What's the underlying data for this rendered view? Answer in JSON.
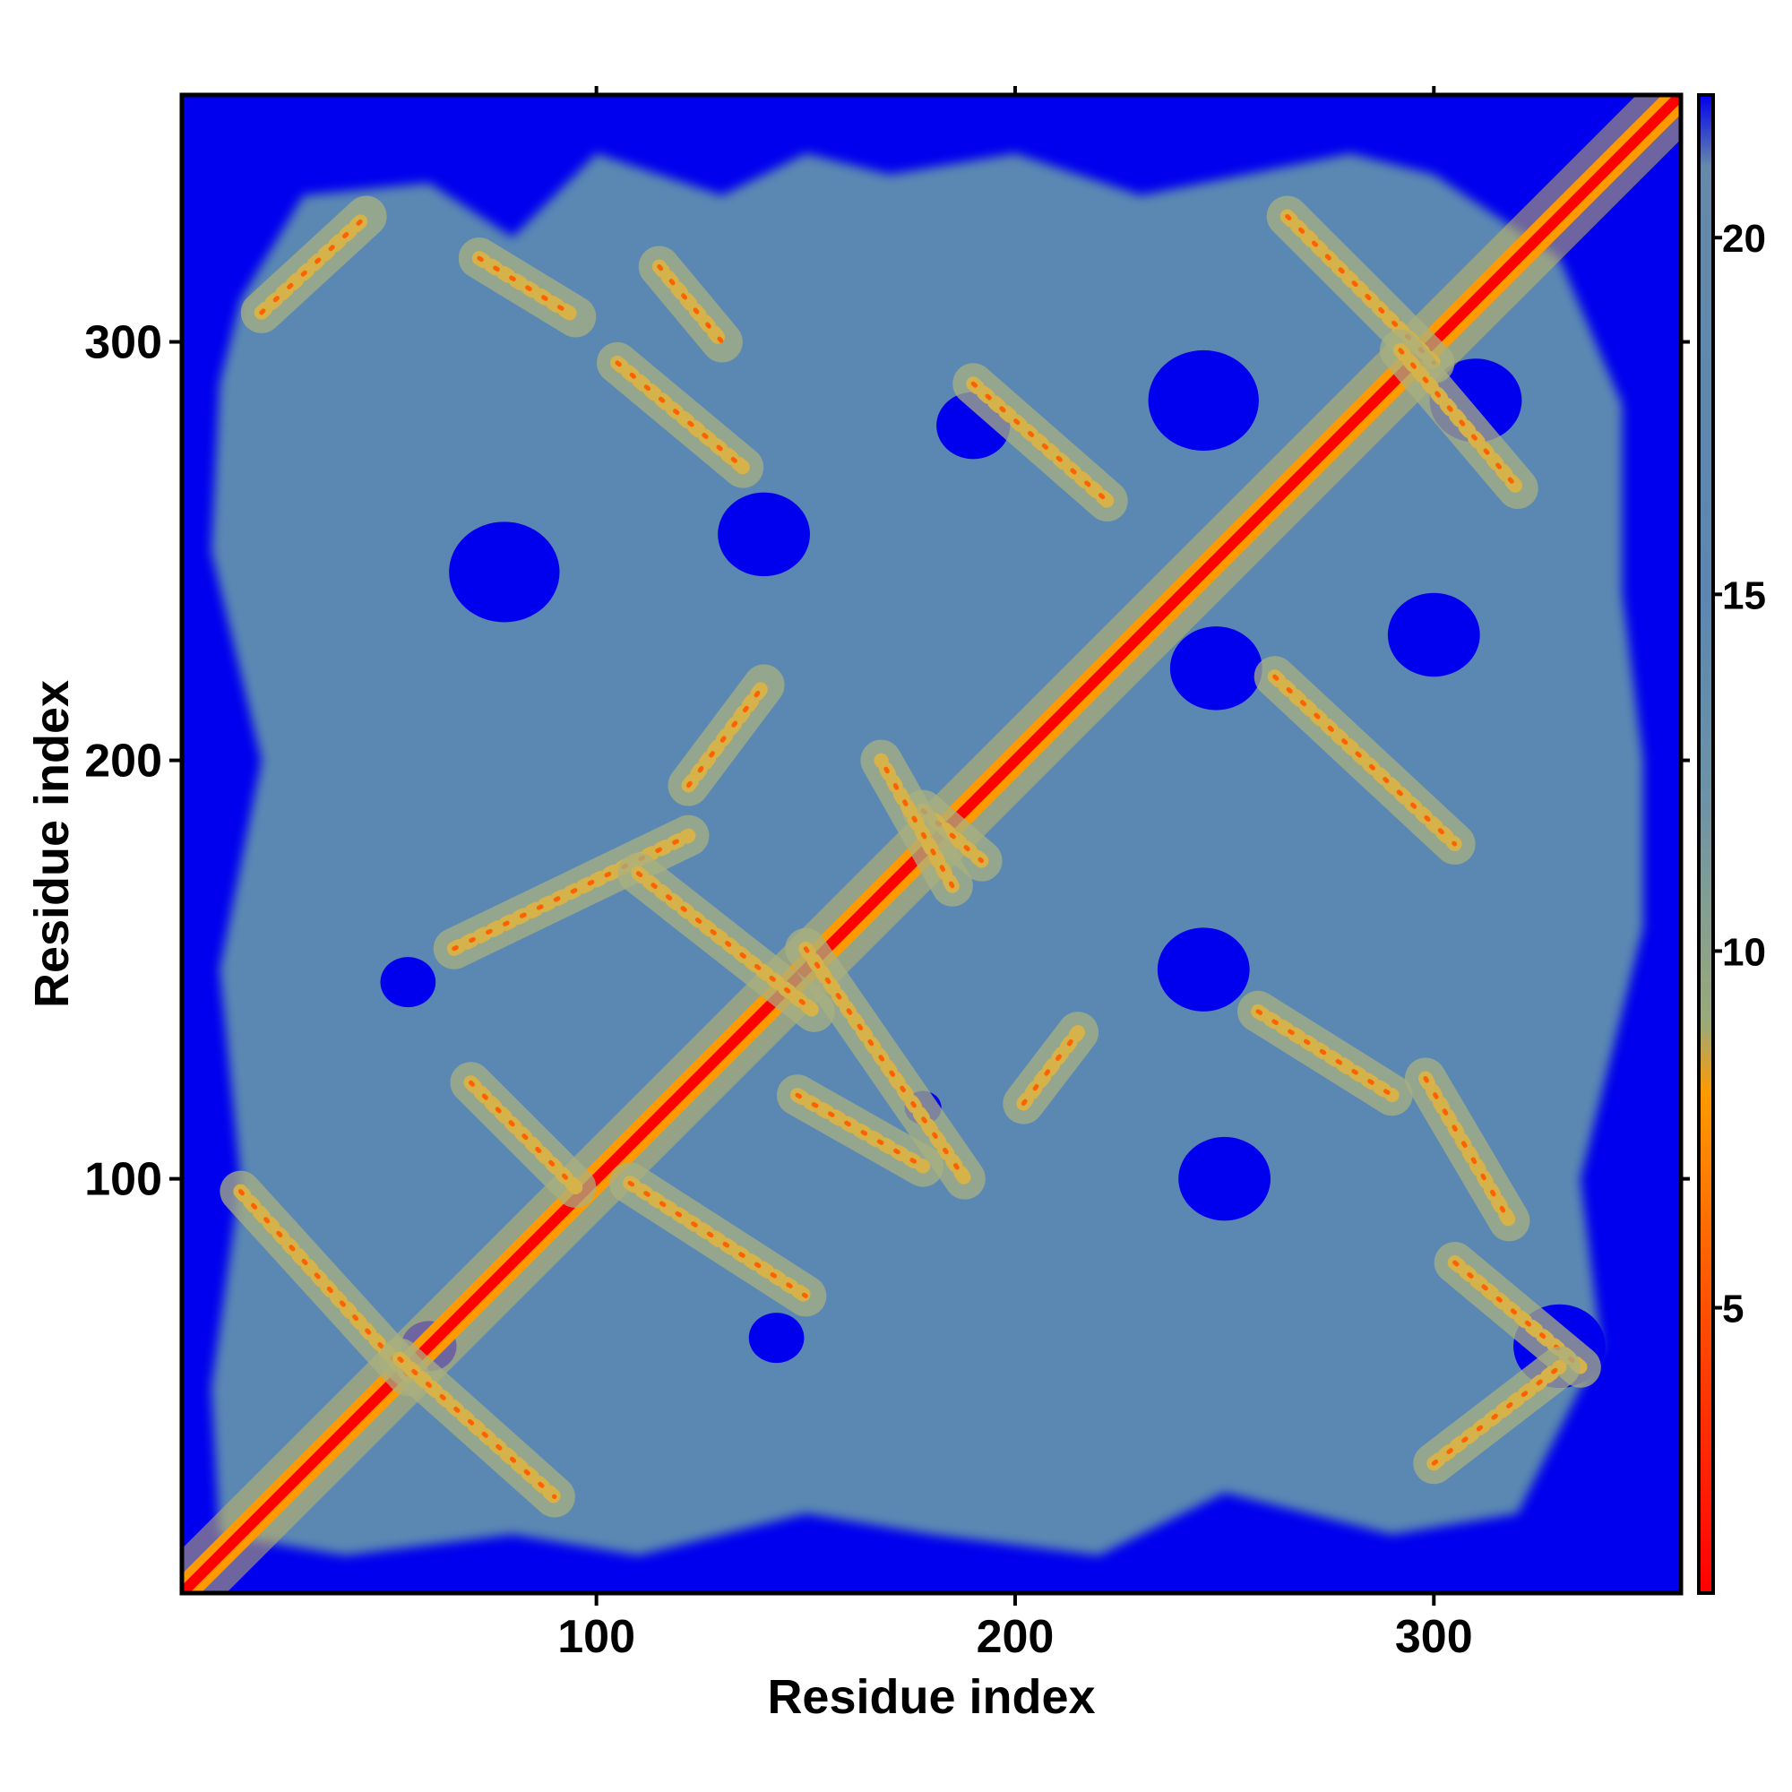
{
  "chart_data": {
    "type": "heatmap",
    "title": "",
    "xlabel": "Residue index",
    "ylabel": "Residue index",
    "xlim": [
      1,
      359
    ],
    "ylim": [
      1,
      359
    ],
    "x_ticks": [
      100,
      200,
      300
    ],
    "y_ticks": [
      100,
      200,
      300
    ],
    "x_tick_labels": [
      "100",
      "200",
      "300"
    ],
    "y_tick_labels": [
      "100",
      "200",
      "300"
    ],
    "colorbar": {
      "range": [
        1,
        22
      ],
      "ticks": [
        5,
        10,
        15,
        20
      ],
      "tick_labels": [
        "5",
        "10",
        "15",
        "20"
      ],
      "stops": [
        {
          "value": 1,
          "color": "#ff0000"
        },
        {
          "value": 5,
          "color": "#ff5000"
        },
        {
          "value": 8,
          "color": "#ff9a00"
        },
        {
          "value": 9,
          "color": "#9aaa7a"
        },
        {
          "value": 12,
          "color": "#6f93a6"
        },
        {
          "value": 15,
          "color": "#5a88b2"
        },
        {
          "value": 21,
          "color": "#6688aa"
        },
        {
          "value": 22,
          "color": "#0000ee"
        }
      ]
    },
    "background_color": "#0000ee",
    "band_color": "#5a88b2",
    "diagonal_color": "#ff0000",
    "contact_segments": [
      {
        "from": [
          15,
          97
        ],
        "to": [
          55,
          53
        ]
      },
      {
        "from": [
          53,
          57
        ],
        "to": [
          90,
          24
        ]
      },
      {
        "from": [
          70,
          123
        ],
        "to": [
          95,
          98
        ]
      },
      {
        "from": [
          66,
          155
        ],
        "to": [
          122,
          182
        ]
      },
      {
        "from": [
          108,
          99
        ],
        "to": [
          150,
          72
        ]
      },
      {
        "from": [
          110,
          173
        ],
        "to": [
          152,
          140
        ]
      },
      {
        "from": [
          122,
          194
        ],
        "to": [
          140,
          218
        ]
      },
      {
        "from": [
          148,
          120
        ],
        "to": [
          178,
          103
        ]
      },
      {
        "from": [
          150,
          155
        ],
        "to": [
          188,
          100
        ]
      },
      {
        "from": [
          178,
          188
        ],
        "to": [
          192,
          176
        ]
      },
      {
        "from": [
          185,
          170
        ],
        "to": [
          168,
          200
        ]
      },
      {
        "from": [
          202,
          118
        ],
        "to": [
          215,
          135
        ]
      },
      {
        "from": [
          20,
          307
        ],
        "to": [
          45,
          330
        ]
      },
      {
        "from": [
          72,
          320
        ],
        "to": [
          95,
          306
        ]
      },
      {
        "from": [
          105,
          295
        ],
        "to": [
          135,
          270
        ]
      },
      {
        "from": [
          115,
          318
        ],
        "to": [
          130,
          300
        ]
      },
      {
        "from": [
          190,
          290
        ],
        "to": [
          222,
          262
        ]
      },
      {
        "from": [
          265,
          330
        ],
        "to": [
          300,
          295
        ]
      },
      {
        "from": [
          292,
          298
        ],
        "to": [
          320,
          265
        ]
      },
      {
        "from": [
          262,
          220
        ],
        "to": [
          305,
          180
        ]
      },
      {
        "from": [
          258,
          140
        ],
        "to": [
          290,
          120
        ]
      },
      {
        "from": [
          298,
          124
        ],
        "to": [
          318,
          90
        ]
      },
      {
        "from": [
          305,
          80
        ],
        "to": [
          335,
          55
        ]
      },
      {
        "from": [
          300,
          32
        ],
        "to": [
          330,
          55
        ]
      }
    ],
    "hole_regions": [
      {
        "center": [
          78,
          245
        ],
        "radius": 12
      },
      {
        "center": [
          140,
          254
        ],
        "radius": 10
      },
      {
        "center": [
          55,
          147
        ],
        "radius": 6
      },
      {
        "center": [
          143,
          62
        ],
        "radius": 6
      },
      {
        "center": [
          178,
          117
        ],
        "radius": 4
      },
      {
        "center": [
          248,
          222
        ],
        "radius": 10
      },
      {
        "center": [
          245,
          286
        ],
        "radius": 12
      },
      {
        "center": [
          310,
          286
        ],
        "radius": 10
      },
      {
        "center": [
          300,
          230
        ],
        "radius": 10
      },
      {
        "center": [
          245,
          150
        ],
        "radius": 10
      },
      {
        "center": [
          330,
          60
        ],
        "radius": 10
      },
      {
        "center": [
          250,
          100
        ],
        "radius": 10
      },
      {
        "center": [
          190,
          280
        ],
        "radius": 8
      },
      {
        "center": [
          60,
          60
        ],
        "radius": 6
      }
    ],
    "blue_region_centers": [
      [
        30,
        230
      ],
      [
        330,
        20
      ],
      [
        345,
        150
      ],
      [
        340,
        250
      ],
      [
        20,
        20
      ],
      [
        230,
        40
      ],
      [
        180,
        40
      ]
    ]
  }
}
